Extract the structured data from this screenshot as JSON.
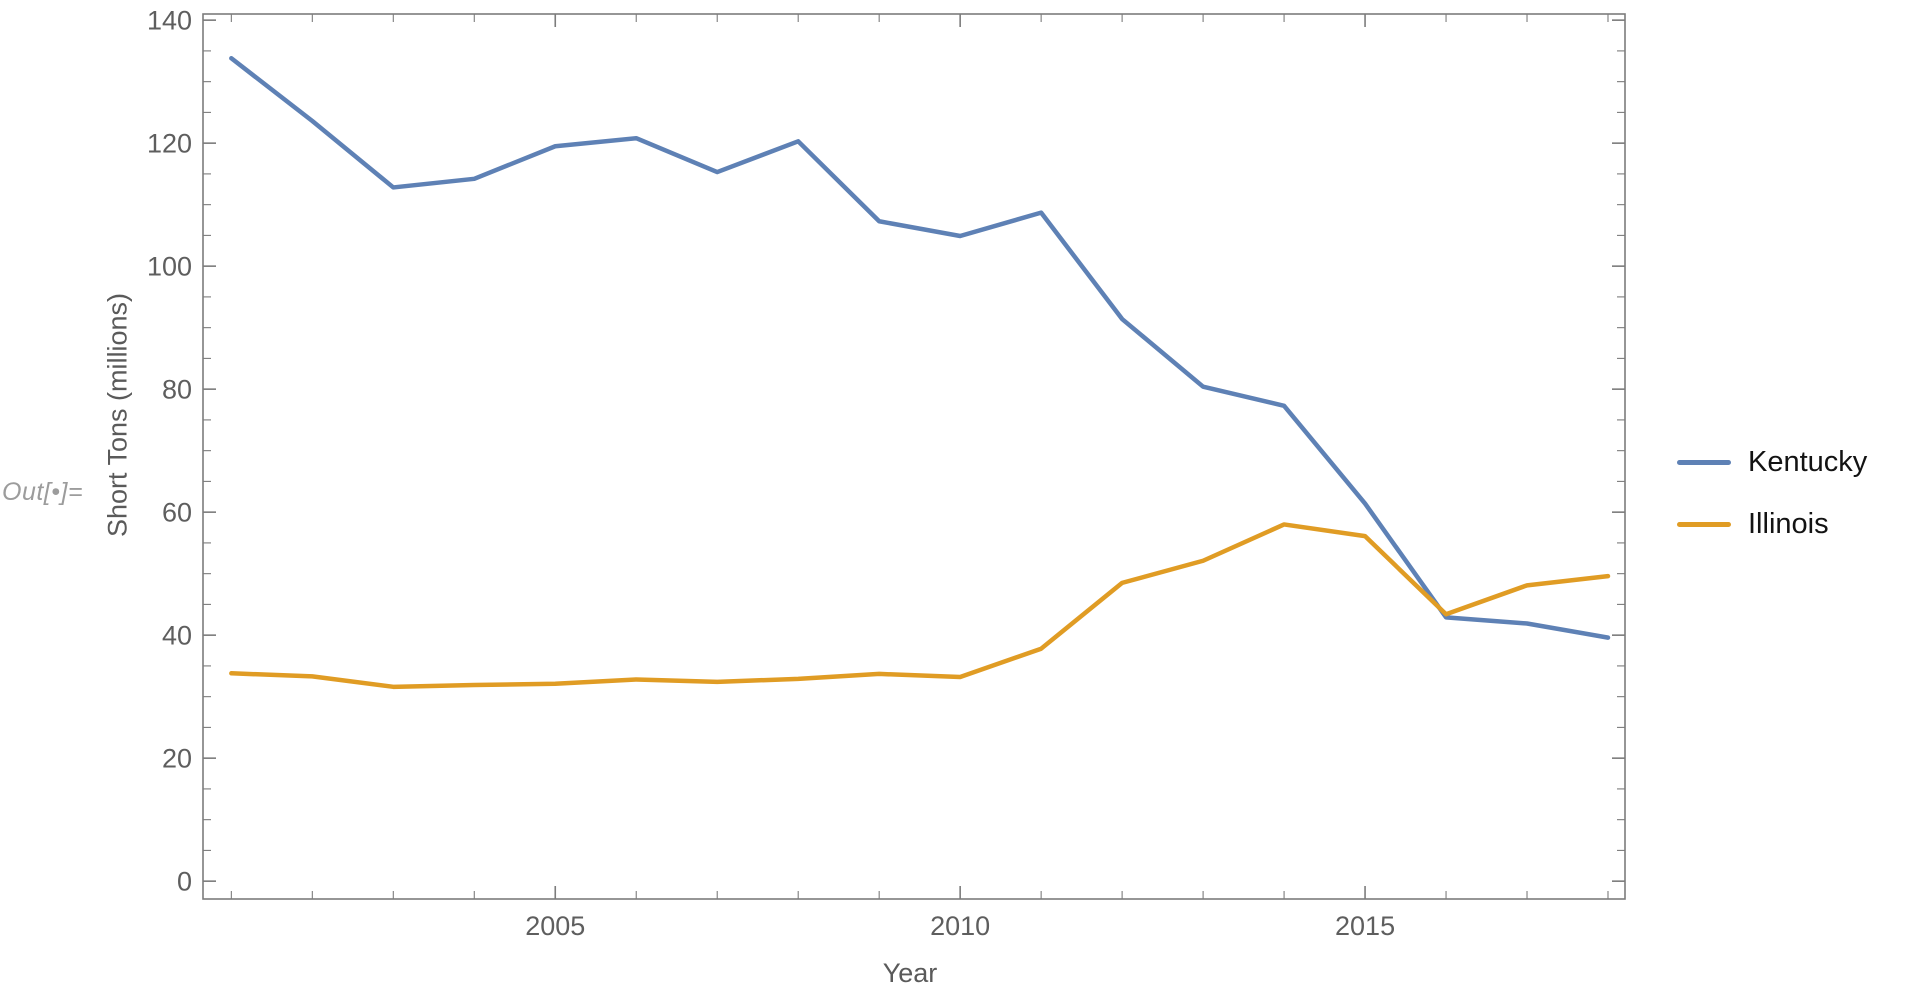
{
  "notebook": {
    "out_label": "Out[•]="
  },
  "chart_data": {
    "type": "line",
    "title": "",
    "xlabel": "Year",
    "ylabel": "Short Tons (millions)",
    "x": [
      2001,
      2002,
      2003,
      2004,
      2005,
      2006,
      2007,
      2008,
      2009,
      2010,
      2011,
      2012,
      2013,
      2014,
      2015,
      2016,
      2017,
      2018
    ],
    "series": [
      {
        "name": "Kentucky",
        "color": "#5E81B5",
        "values": [
          133.8,
          123.6,
          112.8,
          114.2,
          119.5,
          120.8,
          115.3,
          120.3,
          107.3,
          104.9,
          108.7,
          91.4,
          80.4,
          77.3,
          61.4,
          42.9,
          41.9,
          39.6
        ]
      },
      {
        "name": "Illinois",
        "color": "#E09C24",
        "values": [
          33.8,
          33.3,
          31.6,
          31.9,
          32.1,
          32.8,
          32.4,
          32.9,
          33.7,
          33.2,
          37.8,
          48.5,
          52.1,
          58.0,
          56.1,
          43.4,
          48.1,
          49.6
        ]
      }
    ],
    "xlim": [
      2000.65,
      2018.21
    ],
    "ylim": [
      -2.9,
      141.0
    ],
    "x_major_ticks": [
      2005,
      2010,
      2015
    ],
    "x_major_tick_labels": [
      "2005",
      "2010",
      "2015"
    ],
    "y_major_ticks": [
      0,
      20,
      40,
      60,
      80,
      100,
      120,
      140
    ],
    "y_major_tick_labels": [
      "0",
      "20",
      "40",
      "60",
      "80",
      "100",
      "120",
      "140"
    ],
    "y_minor_step": 5,
    "grid": false,
    "legend_position": "right-outside"
  },
  "styles": {
    "background": "#ffffff",
    "frame_color": "#7c7c7c",
    "tick_label_color": "#5e5e5e",
    "axis_label_color": "#5a5a5a",
    "legend_text_color": "#131313",
    "out_label_color": "#9c9c9c",
    "line_width": 4.5
  }
}
